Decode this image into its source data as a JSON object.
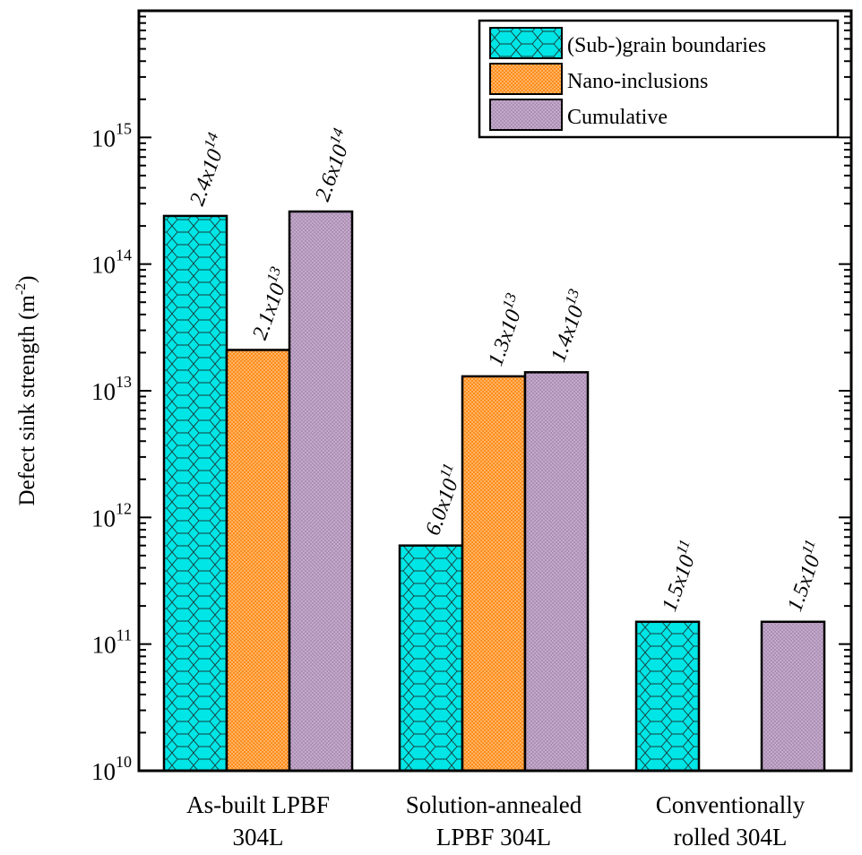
{
  "chart_data": {
    "type": "bar",
    "yscale": "log",
    "ylim": [
      10000000000.0,
      1e+16
    ],
    "ylabel": {
      "text": "Defect sink strength (m",
      "sup": "-2",
      "tail": ")"
    },
    "ytick_labels": [
      {
        "value": 10000000000.0,
        "base": "10",
        "exp": "10"
      },
      {
        "value": 100000000000.0,
        "base": "10",
        "exp": "11"
      },
      {
        "value": 1000000000000.0,
        "base": "10",
        "exp": "12"
      },
      {
        "value": 10000000000000.0,
        "base": "10",
        "exp": "13"
      },
      {
        "value": 100000000000000.0,
        "base": "10",
        "exp": "14"
      },
      {
        "value": 1000000000000000.0,
        "base": "10",
        "exp": "15"
      }
    ],
    "categories": [
      [
        "As-built LPBF",
        "304L"
      ],
      [
        "Solution-annealed",
        "LPBF 304L"
      ],
      [
        "Conventionally",
        "rolled 304L"
      ]
    ],
    "series": [
      {
        "name": "(Sub-)grain boundaries",
        "color": "#00e5e5",
        "pattern": "hexagon",
        "values": [
          240000000000000.0,
          600000000000.0,
          150000000000.0
        ],
        "labels": [
          {
            "m": "2.4x10",
            "e": "14"
          },
          {
            "m": "6.0x10",
            "e": "11"
          },
          {
            "m": "1.5x10",
            "e": "11"
          }
        ]
      },
      {
        "name": "Nano-inclusions",
        "color": "#ff8c1a",
        "pattern": "dots",
        "values": [
          21000000000000.0,
          13000000000000.0,
          null
        ],
        "labels": [
          {
            "m": "2.1x10",
            "e": "13"
          },
          {
            "m": "1.3x10",
            "e": "13"
          },
          null
        ]
      },
      {
        "name": "Cumulative",
        "color": "#c4a8cc",
        "pattern": "dots-dense",
        "values": [
          260000000000000.0,
          14000000000000.0,
          150000000000.0
        ],
        "labels": [
          {
            "m": "2.6x10",
            "e": "14"
          },
          {
            "m": "1.4x10",
            "e": "13"
          },
          {
            "m": "1.5x10",
            "e": "11"
          }
        ]
      }
    ],
    "legend_position": "top-right",
    "grid": false
  }
}
